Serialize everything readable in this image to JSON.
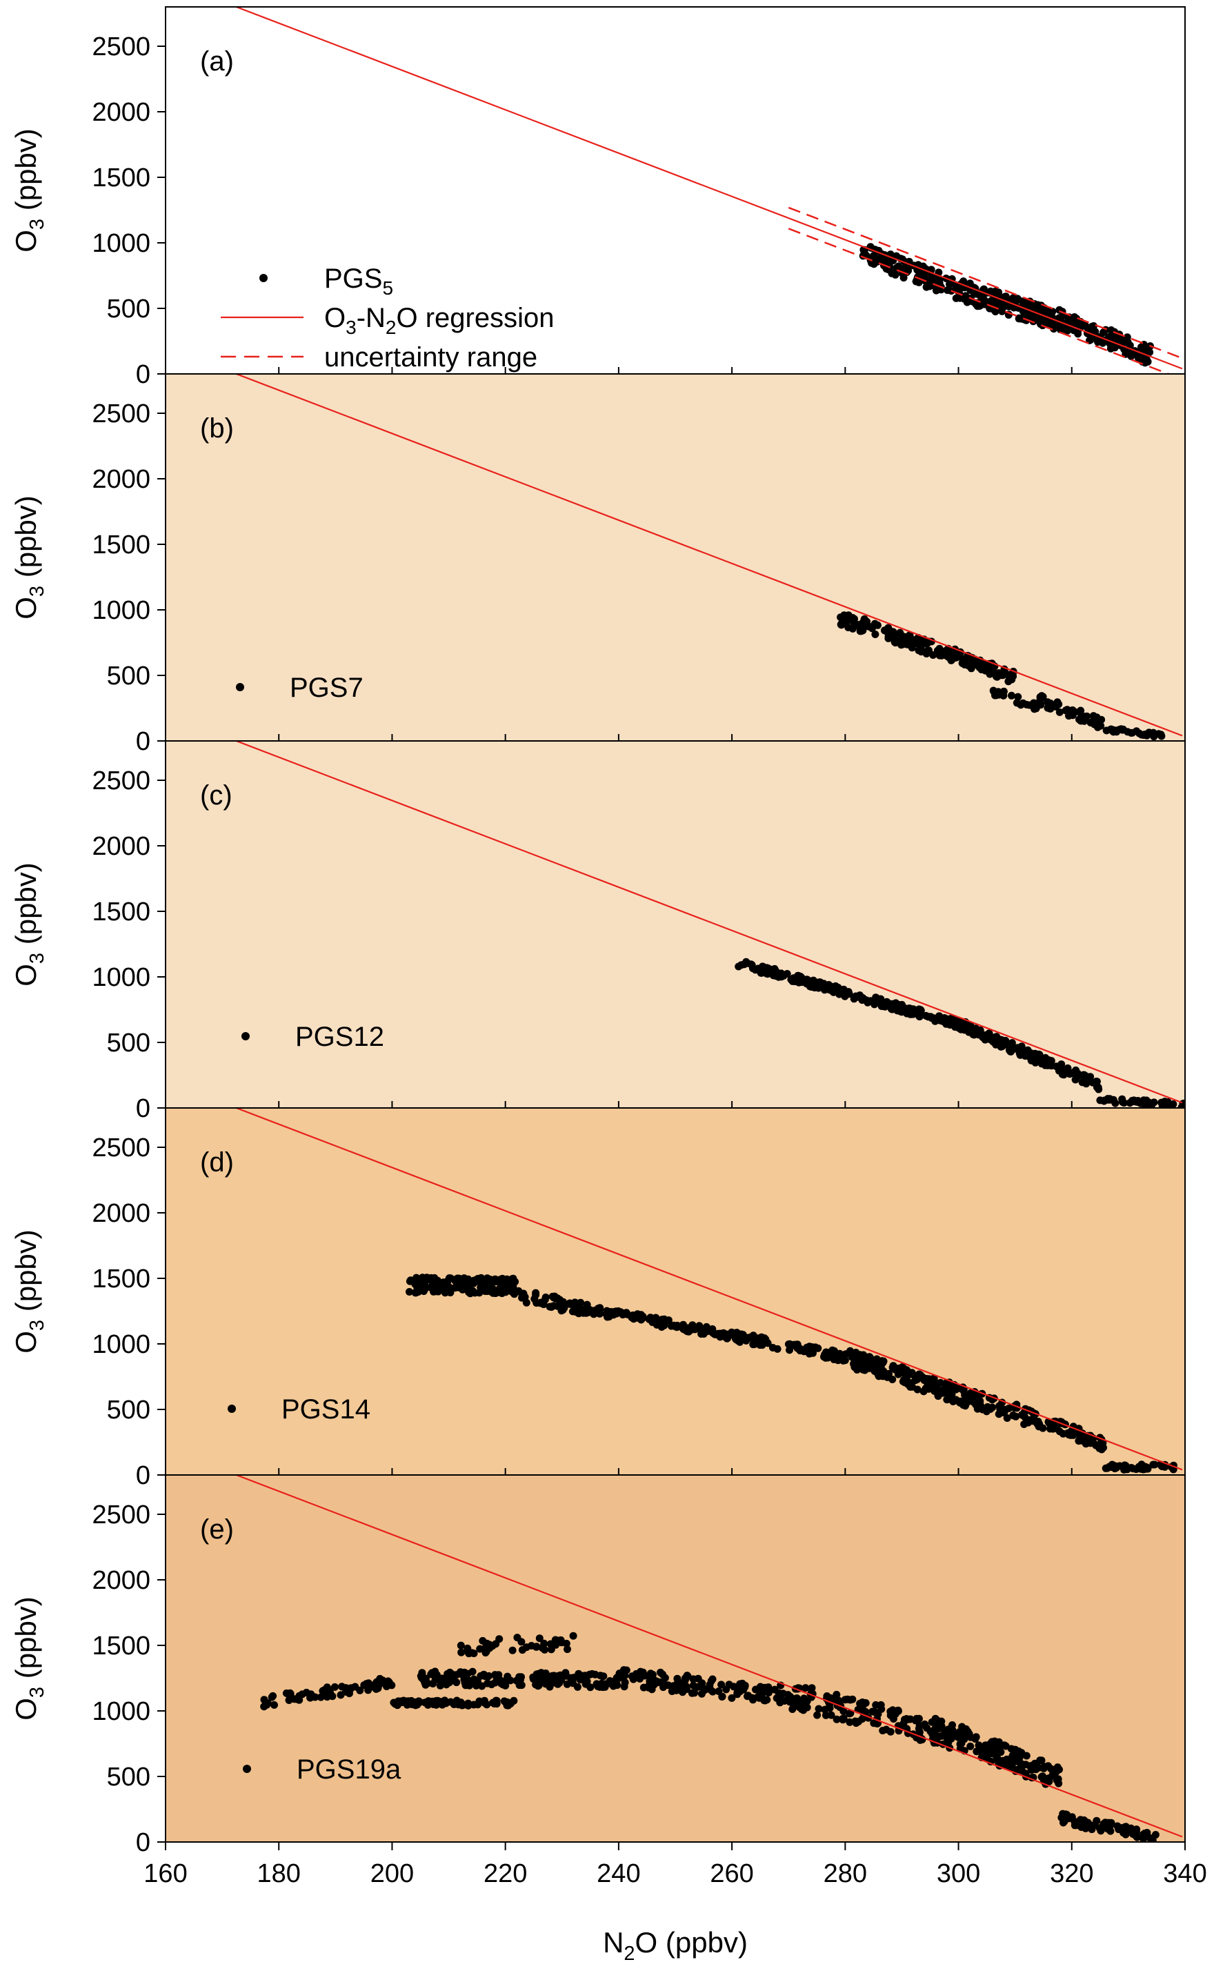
{
  "chart_data": {
    "type": "scatter",
    "shared_x_axis": {
      "label": "N2O (ppbv)",
      "xlim": [
        160,
        340
      ],
      "ticks": [
        160,
        180,
        200,
        220,
        240,
        260,
        280,
        300,
        320,
        340
      ]
    },
    "y_axis": {
      "label": "O3 (ppbv)",
      "ylim": [
        0,
        2800
      ],
      "ticks": [
        0,
        500,
        1000,
        1500,
        2000,
        2500
      ]
    },
    "regression_line": {
      "name": "O3-N2O regression",
      "points": [
        [
          172.5,
          2800
        ],
        [
          339.5,
          40
        ]
      ],
      "color": "#e8201a"
    },
    "uncertainty_range": {
      "name": "uncertainty range",
      "x": [
        270,
        340
      ],
      "offset": 80,
      "color": "#e8201a"
    },
    "panels": [
      {
        "id": "a",
        "label": "(a)",
        "background": "#ffffff",
        "show_uncertainty": true,
        "series_name": "PGS5",
        "legend": [
          {
            "kind": "dot",
            "text": "PGS5"
          },
          {
            "kind": "line",
            "text": "O3-N2O regression"
          },
          {
            "kind": "dash",
            "text": "uncertainty range"
          }
        ],
        "segments": [
          {
            "x0": 283,
            "x1": 300,
            "y0": 930,
            "y1": 640,
            "band": 150,
            "n": 120
          },
          {
            "x0": 300,
            "x1": 320,
            "y0": 640,
            "y1": 380,
            "band": 160,
            "n": 160
          },
          {
            "x0": 320,
            "x1": 334,
            "y0": 380,
            "y1": 140,
            "band": 150,
            "n": 100
          }
        ]
      },
      {
        "id": "b",
        "label": "(b)",
        "background": "#f7dfc2",
        "show_uncertainty": false,
        "series_name": "PGS7",
        "legend": [
          {
            "kind": "dot",
            "text": "PGS7"
          }
        ],
        "segments": [
          {
            "x0": 279,
            "x1": 300,
            "y0": 940,
            "y1": 640,
            "band": 110,
            "n": 120
          },
          {
            "x0": 300,
            "x1": 310,
            "y0": 640,
            "y1": 480,
            "band": 100,
            "n": 60
          },
          {
            "x0": 306,
            "x1": 314,
            "y0": 380,
            "y1": 260,
            "band": 60,
            "n": 25
          },
          {
            "x0": 314,
            "x1": 326,
            "y0": 320,
            "y1": 120,
            "band": 80,
            "n": 50
          },
          {
            "x0": 326,
            "x1": 336,
            "y0": 90,
            "y1": 40,
            "band": 30,
            "n": 30
          }
        ]
      },
      {
        "id": "c",
        "label": "(c)",
        "background": "#f7dfc2",
        "show_uncertainty": false,
        "series_name": "PGS12",
        "legend": [
          {
            "kind": "dot",
            "text": "PGS12"
          }
        ],
        "segments": [
          {
            "x0": 261,
            "x1": 300,
            "y0": 1110,
            "y1": 640,
            "band": 60,
            "n": 200
          },
          {
            "x0": 300,
            "x1": 325,
            "y0": 640,
            "y1": 170,
            "band": 80,
            "n": 150
          },
          {
            "x0": 325,
            "x1": 340,
            "y0": 60,
            "y1": 20,
            "band": 40,
            "n": 40
          }
        ]
      },
      {
        "id": "d",
        "label": "(d)",
        "background": "#f2c997",
        "show_uncertainty": false,
        "series_name": "PGS14",
        "legend": [
          {
            "kind": "dot",
            "text": "PGS14"
          }
        ],
        "segments": [
          {
            "x0": 203,
            "x1": 222,
            "y0": 1450,
            "y1": 1440,
            "band": 120,
            "n": 140
          },
          {
            "x0": 222,
            "x1": 235,
            "y0": 1370,
            "y1": 1260,
            "band": 100,
            "n": 60
          },
          {
            "x0": 235,
            "x1": 280,
            "y0": 1260,
            "y1": 900,
            "band": 70,
            "n": 200
          },
          {
            "x0": 280,
            "x1": 315,
            "y0": 900,
            "y1": 400,
            "band": 140,
            "n": 200
          },
          {
            "x0": 315,
            "x1": 326,
            "y0": 420,
            "y1": 220,
            "band": 100,
            "n": 50
          },
          {
            "x0": 326,
            "x1": 338,
            "y0": 60,
            "y1": 60,
            "band": 40,
            "n": 40
          }
        ]
      },
      {
        "id": "e",
        "label": "(e)",
        "background": "#eebf8c",
        "show_uncertainty": false,
        "series_name": "PGS19a",
        "legend": [
          {
            "kind": "dot",
            "text": "PGS19a"
          }
        ],
        "segments": [
          {
            "x0": 176,
            "x1": 200,
            "y0": 1060,
            "y1": 1220,
            "band": 80,
            "n": 70
          },
          {
            "x0": 200,
            "x1": 222,
            "y0": 1060,
            "y1": 1060,
            "band": 40,
            "n": 80
          },
          {
            "x0": 205,
            "x1": 240,
            "y0": 1250,
            "y1": 1230,
            "band": 110,
            "n": 160
          },
          {
            "x0": 212,
            "x1": 232,
            "y0": 1480,
            "y1": 1520,
            "band": 120,
            "n": 40
          },
          {
            "x0": 240,
            "x1": 270,
            "y0": 1260,
            "y1": 1120,
            "band": 140,
            "n": 120
          },
          {
            "x0": 270,
            "x1": 300,
            "y0": 1120,
            "y1": 800,
            "band": 200,
            "n": 160
          },
          {
            "x0": 300,
            "x1": 318,
            "y0": 800,
            "y1": 480,
            "band": 180,
            "n": 120
          },
          {
            "x0": 318,
            "x1": 335,
            "y0": 180,
            "y1": 40,
            "band": 80,
            "n": 70
          }
        ]
      }
    ]
  }
}
